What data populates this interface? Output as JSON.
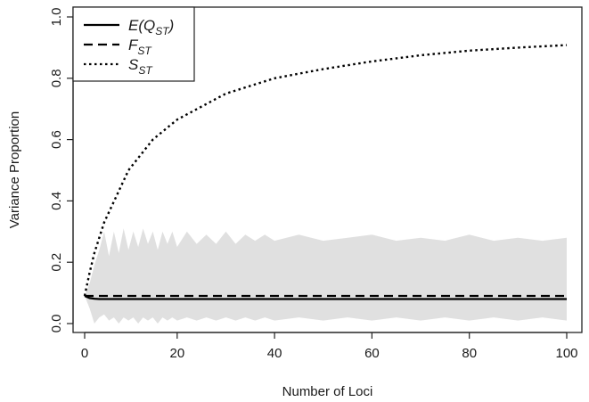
{
  "chart_data": {
    "type": "line",
    "xlabel": "Number of Loci",
    "ylabel": "Variance Proportion",
    "xlim": [
      1,
      100
    ],
    "ylim": [
      0.0,
      1.0
    ],
    "x_ticks": [
      "0",
      "20",
      "40",
      "60",
      "80",
      "100"
    ],
    "y_ticks": [
      "0.0",
      "0.2",
      "0.4",
      "0.6",
      "0.8",
      "1.0"
    ],
    "grid": false,
    "legend_position": "top-left",
    "series": [
      {
        "name": "E(Q_ST)",
        "style": "solid",
        "color": "#000000",
        "x": [
          1,
          2,
          3,
          4,
          5,
          10,
          20,
          40,
          60,
          80,
          100
        ],
        "values": [
          0.09,
          0.083,
          0.081,
          0.08,
          0.08,
          0.08,
          0.08,
          0.08,
          0.08,
          0.08,
          0.08
        ]
      },
      {
        "name": "F_ST",
        "style": "dashed",
        "color": "#000000",
        "x": [
          1,
          100
        ],
        "values": [
          0.09,
          0.09
        ]
      },
      {
        "name": "S_ST",
        "style": "dotted",
        "color": "#000000",
        "x": [
          1,
          2,
          3,
          5,
          10,
          15,
          20,
          30,
          40,
          50,
          60,
          70,
          80,
          90,
          100
        ],
        "values": [
          0.09,
          0.165,
          0.23,
          0.33,
          0.5,
          0.6,
          0.665,
          0.75,
          0.8,
          0.83,
          0.855,
          0.875,
          0.89,
          0.9,
          0.908
        ]
      }
    ],
    "band": {
      "color": "#e0e0e0",
      "x": [
        1,
        2,
        3,
        4,
        5,
        6,
        7,
        8,
        9,
        10,
        11,
        12,
        13,
        14,
        15,
        16,
        17,
        18,
        19,
        20,
        22,
        24,
        26,
        28,
        30,
        32,
        34,
        36,
        38,
        40,
        45,
        50,
        55,
        60,
        65,
        70,
        75,
        80,
        85,
        90,
        95,
        100
      ],
      "upper": [
        0.09,
        0.13,
        0.19,
        0.24,
        0.3,
        0.22,
        0.3,
        0.23,
        0.31,
        0.24,
        0.3,
        0.25,
        0.31,
        0.26,
        0.3,
        0.24,
        0.3,
        0.26,
        0.3,
        0.25,
        0.3,
        0.26,
        0.29,
        0.26,
        0.3,
        0.26,
        0.29,
        0.27,
        0.29,
        0.27,
        0.29,
        0.27,
        0.28,
        0.29,
        0.27,
        0.28,
        0.27,
        0.29,
        0.27,
        0.28,
        0.27,
        0.28
      ],
      "lower": [
        0.09,
        0.05,
        0.0,
        0.02,
        0.03,
        0.01,
        0.02,
        0.0,
        0.02,
        0.01,
        0.02,
        0.0,
        0.02,
        0.01,
        0.02,
        0.0,
        0.02,
        0.01,
        0.02,
        0.01,
        0.02,
        0.01,
        0.02,
        0.01,
        0.02,
        0.01,
        0.02,
        0.01,
        0.02,
        0.01,
        0.02,
        0.01,
        0.02,
        0.01,
        0.02,
        0.01,
        0.02,
        0.01,
        0.02,
        0.01,
        0.02,
        0.01
      ]
    },
    "legend": [
      {
        "base": "E(Q",
        "sub": "ST",
        "tail": ")",
        "style": "solid"
      },
      {
        "base": "F",
        "sub": "ST",
        "tail": "",
        "style": "dashed"
      },
      {
        "base": "S",
        "sub": "ST",
        "tail": "",
        "style": "dotted"
      }
    ]
  }
}
